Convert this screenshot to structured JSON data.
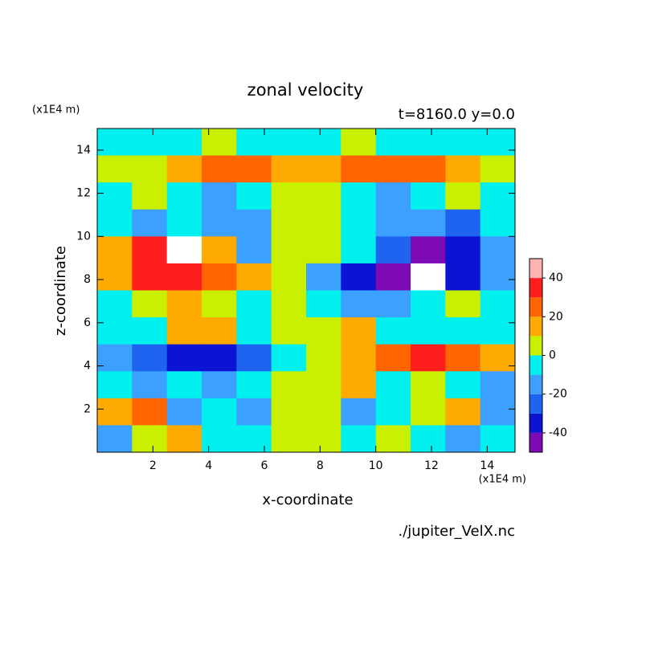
{
  "chart_data": {
    "type": "contour",
    "title": "zonal velocity",
    "subtitle": "t=8160.0 y=0.0",
    "x_label": "x-coordinate",
    "y_label": "z-coordinate",
    "x_unit": "(x1E4 m)",
    "y_unit": "(x1E4 m)",
    "source": "./jupiter_VelX.nc",
    "xlim": [
      0,
      15
    ],
    "ylim": [
      0,
      15
    ],
    "xticks": [
      2,
      4,
      6,
      8,
      10,
      12,
      14
    ],
    "yticks": [
      2,
      4,
      6,
      8,
      10,
      12,
      14
    ],
    "x": [
      0.625,
      1.875,
      3.125,
      4.375,
      5.625,
      6.875,
      8.125,
      9.375,
      10.625,
      11.875,
      13.125,
      14.375
    ],
    "y": [
      14.375,
      13.125,
      11.875,
      10.625,
      9.375,
      8.125,
      6.875,
      5.625,
      4.375,
      3.125,
      1.875,
      0.625
    ],
    "z": [
      [
        -5,
        -5,
        -5,
        5,
        -5,
        -5,
        -5,
        5,
        -5,
        -5,
        -5,
        -5
      ],
      [
        5,
        5,
        15,
        25,
        25,
        15,
        15,
        25,
        25,
        25,
        15,
        5
      ],
      [
        -5,
        5,
        -5,
        -15,
        -5,
        5,
        5,
        -5,
        -15,
        -5,
        5,
        -5
      ],
      [
        -5,
        -15,
        -5,
        -15,
        -15,
        5,
        5,
        -5,
        -15,
        -15,
        -25,
        -5
      ],
      [
        15,
        35,
        55,
        15,
        -15,
        5,
        5,
        -5,
        -25,
        -45,
        -35,
        -15
      ],
      [
        15,
        35,
        35,
        25,
        15,
        5,
        -15,
        -35,
        -45,
        -55,
        -35,
        -15
      ],
      [
        -5,
        5,
        15,
        5,
        -5,
        5,
        -5,
        -15,
        -15,
        -5,
        5,
        -5
      ],
      [
        -5,
        -5,
        15,
        15,
        -5,
        5,
        5,
        15,
        -5,
        -5,
        -5,
        -5
      ],
      [
        -15,
        -25,
        -35,
        -35,
        -25,
        -5,
        5,
        15,
        25,
        35,
        25,
        15
      ],
      [
        -5,
        -15,
        -5,
        -15,
        -5,
        5,
        5,
        15,
        -5,
        5,
        -5,
        -15
      ],
      [
        15,
        25,
        -15,
        -5,
        -15,
        5,
        5,
        -15,
        -5,
        5,
        15,
        -15
      ],
      [
        -15,
        5,
        15,
        -5,
        -5,
        5,
        5,
        -5,
        5,
        -5,
        -15,
        -5
      ]
    ],
    "levels": [
      -50,
      -40,
      -30,
      -20,
      -10,
      0,
      10,
      20,
      30,
      40,
      50
    ],
    "colors": [
      "#7d0ab4",
      "#0a14d2",
      "#1e64f0",
      "#3ca0ff",
      "#00f0f0",
      "#c8f000",
      "#ffaa00",
      "#ff6400",
      "#ff1e1e",
      "#ffb4b4"
    ],
    "under_color": "#ffffff",
    "over_color": "#ffffff",
    "cbar_ticks": [
      -40,
      -20,
      0,
      20,
      40
    ]
  }
}
